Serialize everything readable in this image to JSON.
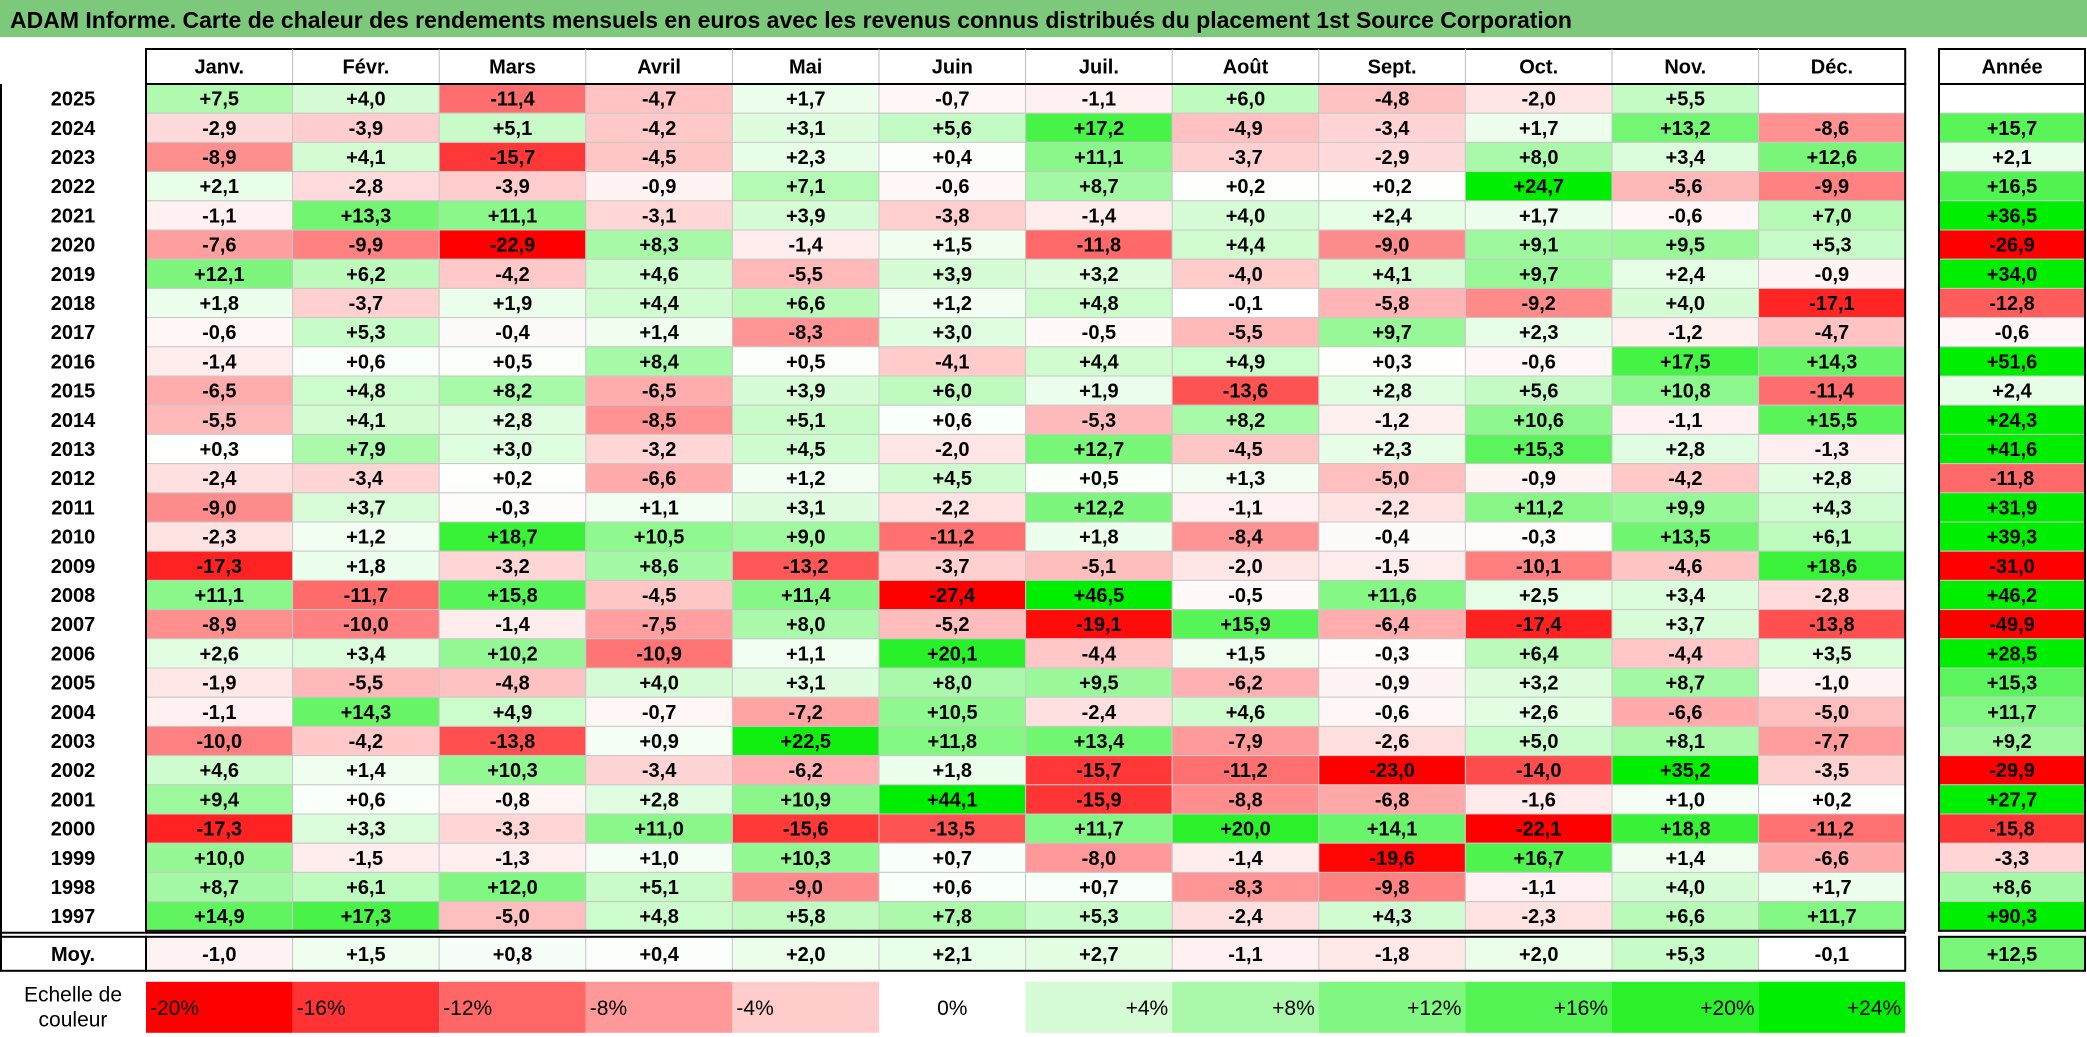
{
  "title": "ADAM Informe. Carte de chaleur des rendements mensuels en euros avec les revenus connus distribués du placement 1st Source Corporation",
  "chart_data": {
    "type": "heatmap",
    "months": [
      "Janv.",
      "Févr.",
      "Mars",
      "Avril",
      "Mai",
      "Juin",
      "Juil.",
      "Août",
      "Sept.",
      "Oct.",
      "Nov.",
      "Déc."
    ],
    "year_header": "Année",
    "rows": [
      {
        "year": "2025",
        "values": [
          "+7,5",
          "+4,0",
          "-11,4",
          "-4,7",
          "+1,7",
          "-0,7",
          "-1,1",
          "+6,0",
          "-4,8",
          "-2,0",
          "+5,5",
          ""
        ],
        "annual": ""
      },
      {
        "year": "2024",
        "values": [
          "-2,9",
          "-3,9",
          "+5,1",
          "-4,2",
          "+3,1",
          "+5,6",
          "+17,2",
          "-4,9",
          "-3,4",
          "+1,7",
          "+13,2",
          "-8,6"
        ],
        "annual": "+15,7"
      },
      {
        "year": "2023",
        "values": [
          "-8,9",
          "+4,1",
          "-15,7",
          "-4,5",
          "+2,3",
          "+0,4",
          "+11,1",
          "-3,7",
          "-2,9",
          "+8,0",
          "+3,4",
          "+12,6"
        ],
        "annual": "+2,1"
      },
      {
        "year": "2022",
        "values": [
          "+2,1",
          "-2,8",
          "-3,9",
          "-0,9",
          "+7,1",
          "-0,6",
          "+8,7",
          "+0,2",
          "+0,2",
          "+24,7",
          "-5,6",
          "-9,9"
        ],
        "annual": "+16,5"
      },
      {
        "year": "2021",
        "values": [
          "-1,1",
          "+13,3",
          "+11,1",
          "-3,1",
          "+3,9",
          "-3,8",
          "-1,4",
          "+4,0",
          "+2,4",
          "+1,7",
          "-0,6",
          "+7,0"
        ],
        "annual": "+36,5"
      },
      {
        "year": "2020",
        "values": [
          "-7,6",
          "-9,9",
          "-22,9",
          "+8,3",
          "-1,4",
          "+1,5",
          "-11,8",
          "+4,4",
          "-9,0",
          "+9,1",
          "+9,5",
          "+5,3"
        ],
        "annual": "-26,9"
      },
      {
        "year": "2019",
        "values": [
          "+12,1",
          "+6,2",
          "-4,2",
          "+4,6",
          "-5,5",
          "+3,9",
          "+3,2",
          "-4,0",
          "+4,1",
          "+9,7",
          "+2,4",
          "-0,9"
        ],
        "annual": "+34,0"
      },
      {
        "year": "2018",
        "values": [
          "+1,8",
          "-3,7",
          "+1,9",
          "+4,4",
          "+6,6",
          "+1,2",
          "+4,8",
          "-0,1",
          "-5,8",
          "-9,2",
          "+4,0",
          "-17,1"
        ],
        "annual": "-12,8"
      },
      {
        "year": "2017",
        "values": [
          "-0,6",
          "+5,3",
          "-0,4",
          "+1,4",
          "-8,3",
          "+3,0",
          "-0,5",
          "-5,5",
          "+9,7",
          "+2,3",
          "-1,2",
          "-4,7"
        ],
        "annual": "-0,6"
      },
      {
        "year": "2016",
        "values": [
          "-1,4",
          "+0,6",
          "+0,5",
          "+8,4",
          "+0,5",
          "-4,1",
          "+4,4",
          "+4,9",
          "+0,3",
          "-0,6",
          "+17,5",
          "+14,3"
        ],
        "annual": "+51,6"
      },
      {
        "year": "2015",
        "values": [
          "-6,5",
          "+4,8",
          "+8,2",
          "-6,5",
          "+3,9",
          "+6,0",
          "+1,9",
          "-13,6",
          "+2,8",
          "+5,6",
          "+10,8",
          "-11,4"
        ],
        "annual": "+2,4"
      },
      {
        "year": "2014",
        "values": [
          "-5,5",
          "+4,1",
          "+2,8",
          "-8,5",
          "+5,1",
          "+0,6",
          "-5,3",
          "+8,2",
          "-1,2",
          "+10,6",
          "-1,1",
          "+15,5"
        ],
        "annual": "+24,3"
      },
      {
        "year": "2013",
        "values": [
          "+0,3",
          "+7,9",
          "+3,0",
          "-3,2",
          "+4,5",
          "-2,0",
          "+12,7",
          "-4,5",
          "+2,3",
          "+15,3",
          "+2,8",
          "-1,3"
        ],
        "annual": "+41,6"
      },
      {
        "year": "2012",
        "values": [
          "-2,4",
          "-3,4",
          "+0,2",
          "-6,6",
          "+1,2",
          "+4,5",
          "+0,5",
          "+1,3",
          "-5,0",
          "-0,9",
          "-4,2",
          "+2,8"
        ],
        "annual": "-11,8"
      },
      {
        "year": "2011",
        "values": [
          "-9,0",
          "+3,7",
          "-0,3",
          "+1,1",
          "+3,1",
          "-2,2",
          "+12,2",
          "-1,1",
          "-2,2",
          "+11,2",
          "+9,9",
          "+4,3"
        ],
        "annual": "+31,9"
      },
      {
        "year": "2010",
        "values": [
          "-2,3",
          "+1,2",
          "+18,7",
          "+10,5",
          "+9,0",
          "-11,2",
          "+1,8",
          "-8,4",
          "-0,4",
          "-0,3",
          "+13,5",
          "+6,1"
        ],
        "annual": "+39,3"
      },
      {
        "year": "2009",
        "values": [
          "-17,3",
          "+1,8",
          "-3,2",
          "+8,6",
          "-13,2",
          "-3,7",
          "-5,1",
          "-2,0",
          "-1,5",
          "-10,1",
          "-4,6",
          "+18,6"
        ],
        "annual": "-31,0"
      },
      {
        "year": "2008",
        "values": [
          "+11,1",
          "-11,7",
          "+15,8",
          "-4,5",
          "+11,4",
          "-27,4",
          "+46,5",
          "-0,5",
          "+11,6",
          "+2,5",
          "+3,4",
          "-2,8"
        ],
        "annual": "+46,2"
      },
      {
        "year": "2007",
        "values": [
          "-8,9",
          "-10,0",
          "-1,4",
          "-7,5",
          "+8,0",
          "-5,2",
          "-19,1",
          "+15,9",
          "-6,4",
          "-17,4",
          "+3,7",
          "-13,8"
        ],
        "annual": "-49,9"
      },
      {
        "year": "2006",
        "values": [
          "+2,6",
          "+3,4",
          "+10,2",
          "-10,9",
          "+1,1",
          "+20,1",
          "-4,4",
          "+1,5",
          "-0,3",
          "+6,4",
          "-4,4",
          "+3,5"
        ],
        "annual": "+28,5"
      },
      {
        "year": "2005",
        "values": [
          "-1,9",
          "-5,5",
          "-4,8",
          "+4,0",
          "+3,1",
          "+8,0",
          "+9,5",
          "-6,2",
          "-0,9",
          "+3,2",
          "+8,7",
          "-1,0"
        ],
        "annual": "+15,3"
      },
      {
        "year": "2004",
        "values": [
          "-1,1",
          "+14,3",
          "+4,9",
          "-0,7",
          "-7,2",
          "+10,5",
          "-2,4",
          "+4,6",
          "-0,6",
          "+2,6",
          "-6,6",
          "-5,0"
        ],
        "annual": "+11,7"
      },
      {
        "year": "2003",
        "values": [
          "-10,0",
          "-4,2",
          "-13,8",
          "+0,9",
          "+22,5",
          "+11,8",
          "+13,4",
          "-7,9",
          "-2,6",
          "+5,0",
          "+8,1",
          "-7,7"
        ],
        "annual": "+9,2"
      },
      {
        "year": "2002",
        "values": [
          "+4,6",
          "+1,4",
          "+10,3",
          "-3,4",
          "-6,2",
          "+1,8",
          "-15,7",
          "-11,2",
          "-23,0",
          "-14,0",
          "+35,2",
          "-3,5"
        ],
        "annual": "-29,9"
      },
      {
        "year": "2001",
        "values": [
          "+9,4",
          "+0,6",
          "-0,8",
          "+2,8",
          "+10,9",
          "+44,1",
          "-15,9",
          "-8,8",
          "-6,8",
          "-1,6",
          "+1,0",
          "+0,2"
        ],
        "annual": "+27,7"
      },
      {
        "year": "2000",
        "values": [
          "-17,3",
          "+3,3",
          "-3,3",
          "+11,0",
          "-15,6",
          "-13,5",
          "+11,7",
          "+20,0",
          "+14,1",
          "-22,1",
          "+18,8",
          "-11,2"
        ],
        "annual": "-15,8"
      },
      {
        "year": "1999",
        "values": [
          "+10,0",
          "-1,5",
          "-1,3",
          "+1,0",
          "+10,3",
          "+0,7",
          "-8,0",
          "-1,4",
          "-19,6",
          "+16,7",
          "+1,4",
          "-6,6"
        ],
        "annual": "-3,3"
      },
      {
        "year": "1998",
        "values": [
          "+8,7",
          "+6,1",
          "+12,0",
          "+5,1",
          "-9,0",
          "+0,6",
          "+0,7",
          "-8,3",
          "-9,8",
          "-1,1",
          "+4,0",
          "+1,7"
        ],
        "annual": "+8,6"
      },
      {
        "year": "1997",
        "values": [
          "+14,9",
          "+17,3",
          "-5,0",
          "+4,8",
          "+5,8",
          "+7,8",
          "+5,3",
          "-2,4",
          "+4,3",
          "-2,3",
          "+6,6",
          "+11,7"
        ],
        "annual": "+90,3"
      }
    ],
    "average": {
      "label": "Moy.",
      "values": [
        "-1,0",
        "+1,5",
        "+0,8",
        "+0,4",
        "+2,0",
        "+2,1",
        "+2,7",
        "-1,1",
        "-1,8",
        "+2,0",
        "+5,3",
        "-0,1"
      ],
      "annual": "+12,5"
    },
    "color_scale": {
      "label_lines": [
        "Echelle de",
        "couleur"
      ],
      "stops": [
        "-20%",
        "-16%",
        "-12%",
        "-8%",
        "-4%",
        "0%",
        "+4%",
        "+8%",
        "+12%",
        "+16%",
        "+20%",
        "+24%"
      ],
      "stop_values": [
        -20,
        -16,
        -12,
        -8,
        -4,
        0,
        4,
        8,
        12,
        16,
        20,
        24
      ],
      "neg_color": "#ff0000",
      "pos_color": "#00ee00",
      "zero_color": "#ffffff",
      "neg_limit": -20,
      "pos_limit": 24
    },
    "title_bar_color": "#7cc97c"
  }
}
